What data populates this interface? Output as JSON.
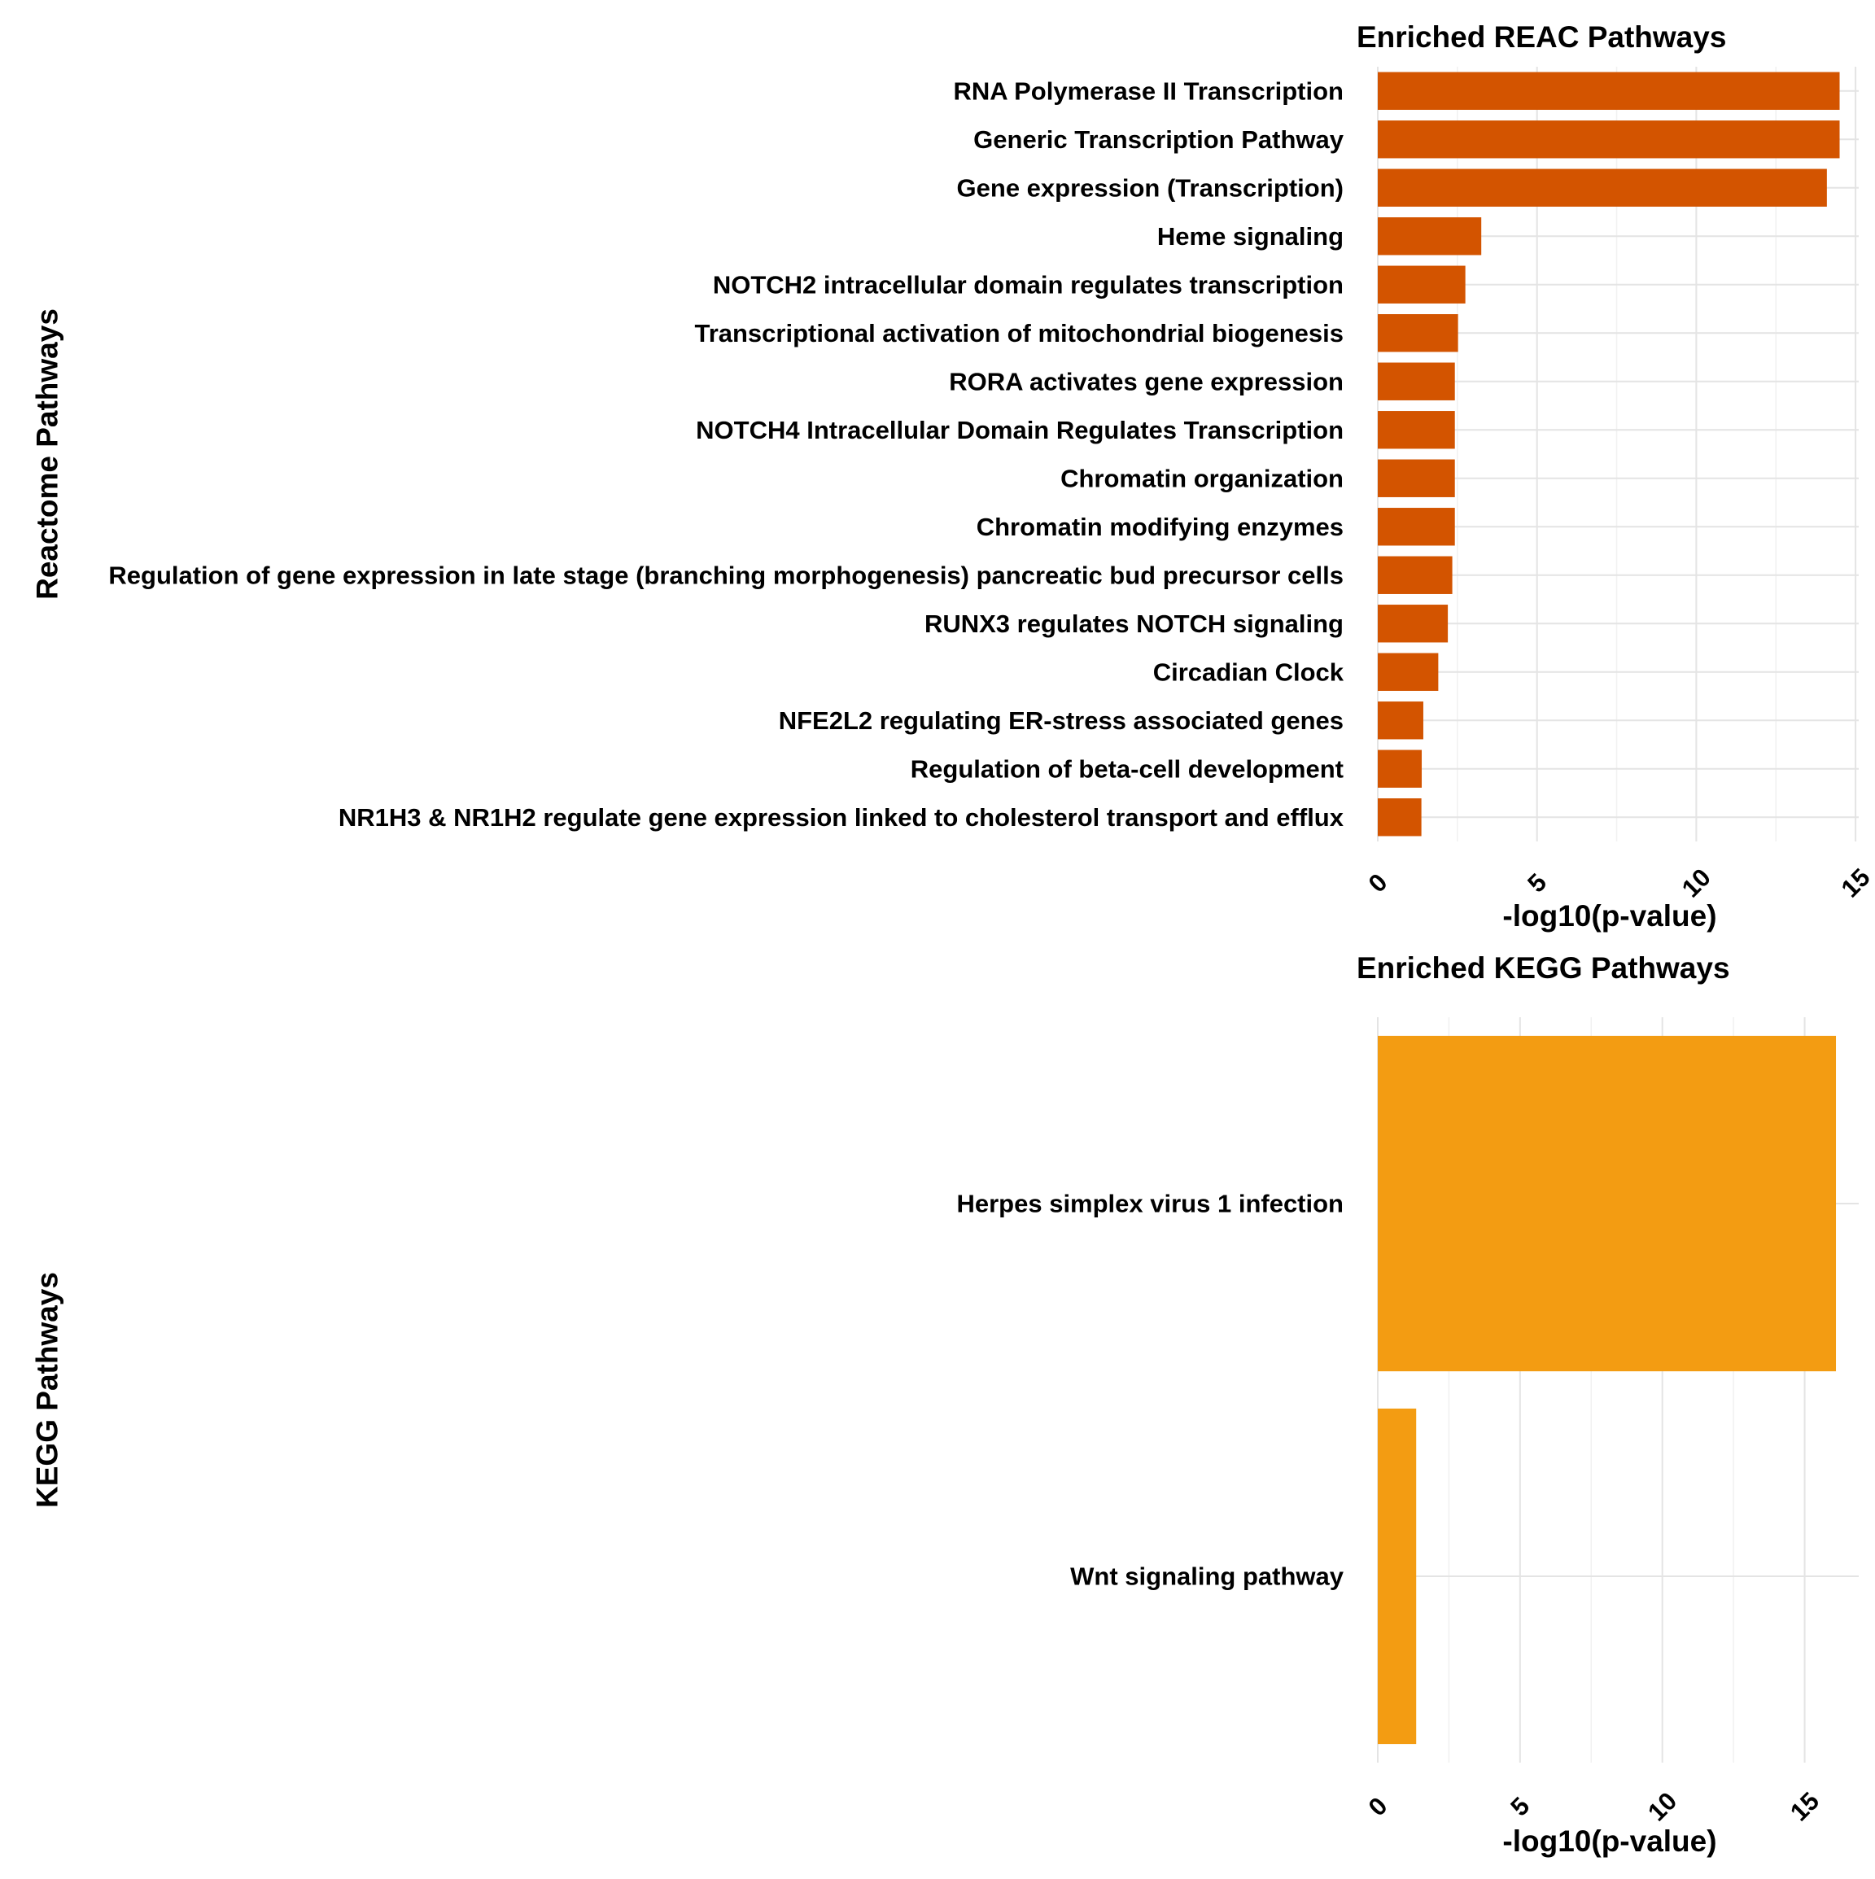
{
  "chart_data": [
    {
      "type": "bar",
      "orientation": "horizontal",
      "title": "Enriched REAC Pathways",
      "xlabel": "-log10(p-value)",
      "ylabel": "Reactome Pathways",
      "color": "#D35400",
      "xlim": [
        0,
        15.1
      ],
      "xticks": [
        0,
        5,
        10,
        15
      ],
      "grid": true,
      "categories": [
        "RNA Polymerase II Transcription",
        "Generic Transcription Pathway",
        "Gene expression (Transcription)",
        "Heme signaling",
        "NOTCH2 intracellular domain regulates transcription",
        "Transcriptional activation of mitochondrial biogenesis",
        "RORA activates gene expression",
        "NOTCH4 Intracellular Domain Regulates Transcription",
        "Chromatin organization",
        "Chromatin modifying enzymes",
        "Regulation of gene expression in late stage (branching morphogenesis) pancreatic bud precursor cells",
        "RUNX3 regulates NOTCH signaling",
        "Circadian Clock",
        "NFE2L2 regulating ER-stress associated genes",
        "Regulation of beta-cell development",
        "NR1H3 & NR1H2 regulate gene expression linked to cholesterol transport and efflux"
      ],
      "values": [
        14.5,
        14.5,
        14.1,
        3.25,
        2.75,
        2.52,
        2.42,
        2.42,
        2.42,
        2.42,
        2.34,
        2.2,
        1.9,
        1.43,
        1.38,
        1.37
      ]
    },
    {
      "type": "bar",
      "orientation": "horizontal",
      "title": "Enriched KEGG Pathways",
      "xlabel": "-log10(p-value)",
      "ylabel": "KEGG Pathways",
      "color": "#F39C12",
      "xlim": [
        0,
        16.9
      ],
      "xticks": [
        0,
        5,
        10,
        15
      ],
      "grid": true,
      "categories": [
        "Herpes simplex virus 1 infection",
        "Wnt signaling pathway"
      ],
      "values": [
        16.1,
        1.35
      ]
    }
  ]
}
